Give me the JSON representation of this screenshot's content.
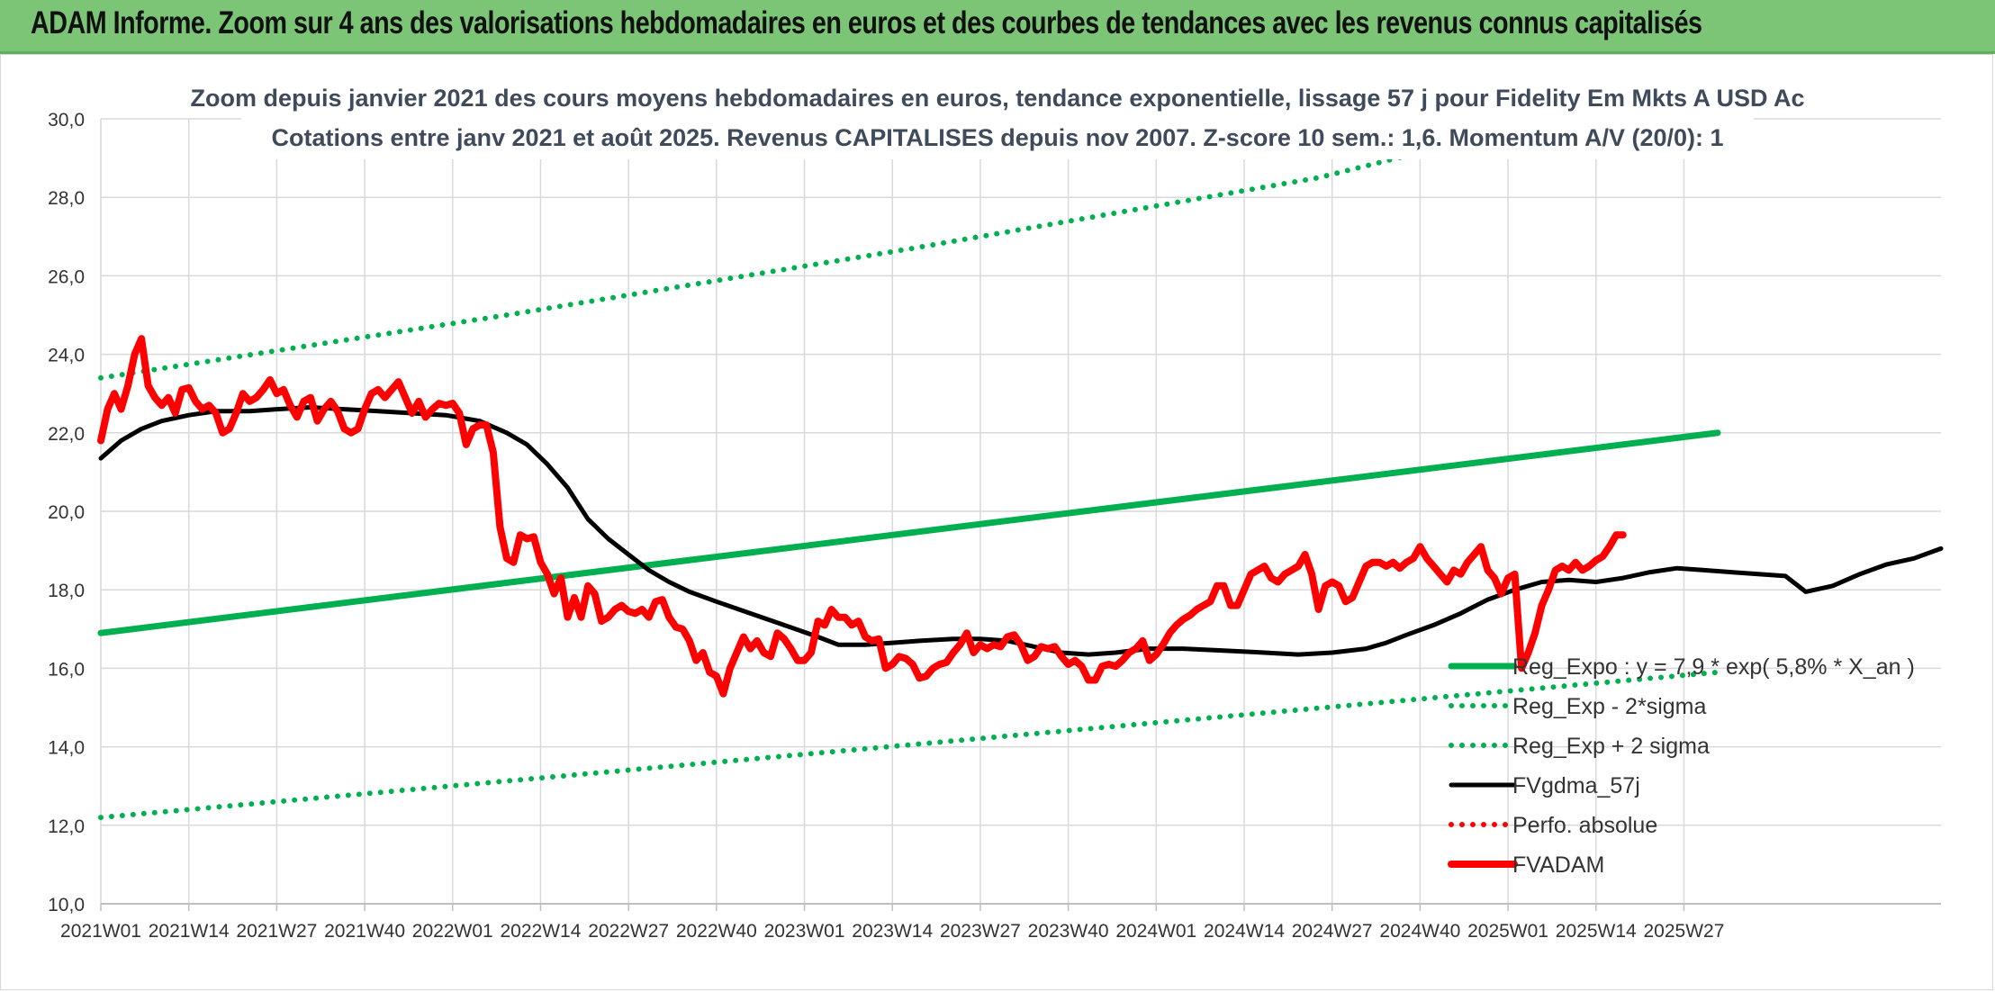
{
  "header": {
    "title": "ADAM Informe. Zoom sur 4 ans des valorisations hebdomadaires en euros et des courbes de tendances avec les revenus connus capitalisés"
  },
  "chart_data": {
    "type": "line",
    "title": "Zoom depuis janvier 2021 des cours moyens hebdomadaires en euros, tendance exponentielle, lissage 57 j pour Fidelity Em Mkts A USD Ac",
    "subtitle": "Cotations entre janv 2021 et août 2025. Revenus CAPITALISES depuis nov 2007. Z-score 10 sem.: 1,6. Momentum A/V (20/0): 1",
    "xlabel": "",
    "ylabel": "",
    "ylim": [
      10,
      30
    ],
    "y_ticks": [
      "10,0",
      "12,0",
      "14,0",
      "16,0",
      "18,0",
      "20,0",
      "22,0",
      "24,0",
      "26,0",
      "28,0",
      "30,0"
    ],
    "x_ticks": [
      "2021W01",
      "2021W14",
      "2021W27",
      "2021W40",
      "2022W01",
      "2022W14",
      "2022W27",
      "2022W40",
      "2023W01",
      "2023W14",
      "2023W27",
      "2023W40",
      "2024W01",
      "2024W14",
      "2024W27",
      "2024W40",
      "2025W01",
      "2025W14",
      "2025W27"
    ],
    "grid": true,
    "legend_position": "bottom-right",
    "series": [
      {
        "name": "Reg_Expo : y = 7,9 * exp( 5,8% * X_an )",
        "color": "#00b050",
        "style": "solid-thick",
        "points": [
          [
            0,
            16.9
          ],
          [
            239,
            22.0
          ]
        ]
      },
      {
        "name": "Reg_Exp - 2*sigma",
        "color": "#00b050",
        "style": "dotted",
        "points": [
          [
            0,
            12.2
          ],
          [
            239,
            15.9
          ]
        ]
      },
      {
        "name": "Reg_Exp + 2 sigma",
        "color": "#00b050",
        "style": "dotted",
        "points": [
          [
            0,
            23.4
          ],
          [
            60,
            25.0
          ],
          [
            120,
            26.7
          ],
          [
            180,
            28.5
          ],
          [
            215,
            30.0
          ],
          [
            239,
            30.0
          ]
        ]
      },
      {
        "name": "FVgdma_57j",
        "color": "#000000",
        "style": "solid",
        "points": [
          [
            0,
            21.35
          ],
          [
            3,
            21.8
          ],
          [
            6,
            22.1
          ],
          [
            9,
            22.3
          ],
          [
            13,
            22.45
          ],
          [
            17,
            22.55
          ],
          [
            22,
            22.55
          ],
          [
            26,
            22.6
          ],
          [
            31,
            22.65
          ],
          [
            36,
            22.6
          ],
          [
            41,
            22.55
          ],
          [
            46,
            22.5
          ],
          [
            51,
            22.45
          ],
          [
            56,
            22.3
          ],
          [
            60,
            22.0
          ],
          [
            63,
            21.7
          ],
          [
            66,
            21.2
          ],
          [
            69,
            20.6
          ],
          [
            72,
            19.8
          ],
          [
            75,
            19.3
          ],
          [
            78,
            18.9
          ],
          [
            81,
            18.5
          ],
          [
            84,
            18.2
          ],
          [
            87,
            17.95
          ],
          [
            91,
            17.7
          ],
          [
            96,
            17.4
          ],
          [
            101,
            17.1
          ],
          [
            106,
            16.8
          ],
          [
            109,
            16.6
          ],
          [
            113,
            16.6
          ],
          [
            117,
            16.65
          ],
          [
            121,
            16.7
          ],
          [
            126,
            16.75
          ],
          [
            130,
            16.75
          ],
          [
            134,
            16.7
          ],
          [
            138,
            16.55
          ],
          [
            142,
            16.4
          ],
          [
            146,
            16.35
          ],
          [
            150,
            16.4
          ],
          [
            155,
            16.5
          ],
          [
            160,
            16.5
          ],
          [
            166,
            16.45
          ],
          [
            172,
            16.4
          ],
          [
            177,
            16.35
          ],
          [
            182,
            16.4
          ],
          [
            187,
            16.5
          ],
          [
            190,
            16.65
          ],
          [
            193,
            16.85
          ],
          [
            197,
            17.1
          ],
          [
            201,
            17.4
          ],
          [
            205,
            17.75
          ],
          [
            209,
            18.0
          ],
          [
            213,
            18.2
          ],
          [
            217,
            18.25
          ],
          [
            221,
            18.2
          ],
          [
            225,
            18.3
          ],
          [
            229,
            18.45
          ],
          [
            233,
            18.55
          ],
          [
            237,
            18.5
          ],
          [
            241,
            18.45
          ],
          [
            245,
            18.4
          ],
          [
            249,
            18.35
          ],
          [
            252,
            17.95
          ],
          [
            256,
            18.1
          ],
          [
            260,
            18.4
          ],
          [
            264,
            18.65
          ],
          [
            268,
            18.8
          ],
          [
            272,
            19.05
          ]
        ]
      },
      {
        "name": "Perfo. absolue",
        "color": "#ff0000",
        "style": "dotted",
        "points": []
      },
      {
        "name": "FVADAM",
        "color": "#ff0000",
        "style": "solid-thick",
        "points": [
          [
            0,
            21.8
          ],
          [
            1,
            22.6
          ],
          [
            2,
            23.0
          ],
          [
            3,
            22.6
          ],
          [
            4,
            23.2
          ],
          [
            5,
            24.0
          ],
          [
            6,
            24.4
          ],
          [
            7,
            23.2
          ],
          [
            8,
            22.9
          ],
          [
            9,
            22.7
          ],
          [
            10,
            22.9
          ],
          [
            11,
            22.5
          ],
          [
            12,
            23.1
          ],
          [
            13,
            23.15
          ],
          [
            14,
            22.8
          ],
          [
            15,
            22.6
          ],
          [
            16,
            22.7
          ],
          [
            17,
            22.5
          ],
          [
            18,
            22.0
          ],
          [
            19,
            22.1
          ],
          [
            20,
            22.5
          ],
          [
            21,
            23.0
          ],
          [
            22,
            22.8
          ],
          [
            23,
            22.9
          ],
          [
            24,
            23.1
          ],
          [
            25,
            23.35
          ],
          [
            26,
            23.0
          ],
          [
            27,
            23.1
          ],
          [
            28,
            22.7
          ],
          [
            29,
            22.4
          ],
          [
            30,
            22.8
          ],
          [
            31,
            22.9
          ],
          [
            32,
            22.3
          ],
          [
            33,
            22.6
          ],
          [
            34,
            22.8
          ],
          [
            35,
            22.55
          ],
          [
            36,
            22.1
          ],
          [
            37,
            22.0
          ],
          [
            38,
            22.1
          ],
          [
            39,
            22.6
          ],
          [
            40,
            23.0
          ],
          [
            41,
            23.1
          ],
          [
            42,
            22.9
          ],
          [
            43,
            23.1
          ],
          [
            44,
            23.3
          ],
          [
            45,
            22.9
          ],
          [
            46,
            22.5
          ],
          [
            47,
            22.8
          ],
          [
            48,
            22.4
          ],
          [
            49,
            22.6
          ],
          [
            50,
            22.75
          ],
          [
            51,
            22.7
          ],
          [
            52,
            22.75
          ],
          [
            53,
            22.5
          ],
          [
            54,
            21.7
          ],
          [
            55,
            22.1
          ],
          [
            56,
            22.2
          ],
          [
            57,
            22.2
          ],
          [
            58,
            21.5
          ],
          [
            59,
            19.6
          ],
          [
            60,
            18.8
          ],
          [
            61,
            18.7
          ],
          [
            62,
            19.4
          ],
          [
            63,
            19.3
          ],
          [
            64,
            19.35
          ],
          [
            65,
            18.7
          ],
          [
            66,
            18.4
          ],
          [
            67,
            17.9
          ],
          [
            68,
            18.3
          ],
          [
            69,
            17.3
          ],
          [
            70,
            17.8
          ],
          [
            71,
            17.3
          ],
          [
            72,
            18.1
          ],
          [
            73,
            17.9
          ],
          [
            74,
            17.2
          ],
          [
            75,
            17.3
          ],
          [
            76,
            17.5
          ],
          [
            77,
            17.6
          ],
          [
            78,
            17.45
          ],
          [
            79,
            17.4
          ],
          [
            80,
            17.5
          ],
          [
            81,
            17.3
          ],
          [
            82,
            17.7
          ],
          [
            83,
            17.75
          ],
          [
            84,
            17.3
          ],
          [
            85,
            17.05
          ],
          [
            86,
            17.0
          ],
          [
            87,
            16.7
          ],
          [
            88,
            16.2
          ],
          [
            89,
            16.4
          ],
          [
            90,
            15.9
          ],
          [
            91,
            15.8
          ],
          [
            92,
            15.35
          ],
          [
            93,
            16.0
          ],
          [
            94,
            16.4
          ],
          [
            95,
            16.8
          ],
          [
            96,
            16.5
          ],
          [
            97,
            16.7
          ],
          [
            98,
            16.4
          ],
          [
            99,
            16.3
          ],
          [
            100,
            16.9
          ],
          [
            101,
            16.75
          ],
          [
            102,
            16.5
          ],
          [
            103,
            16.2
          ],
          [
            104,
            16.2
          ],
          [
            105,
            16.4
          ],
          [
            106,
            17.2
          ],
          [
            107,
            17.1
          ],
          [
            108,
            17.5
          ],
          [
            109,
            17.3
          ],
          [
            110,
            17.3
          ],
          [
            111,
            17.1
          ],
          [
            112,
            17.2
          ],
          [
            113,
            16.8
          ],
          [
            114,
            16.7
          ],
          [
            115,
            16.75
          ],
          [
            116,
            16.0
          ],
          [
            117,
            16.1
          ],
          [
            118,
            16.3
          ],
          [
            119,
            16.25
          ],
          [
            120,
            16.1
          ],
          [
            121,
            15.75
          ],
          [
            122,
            15.8
          ],
          [
            123,
            16.0
          ],
          [
            124,
            16.1
          ],
          [
            125,
            16.15
          ],
          [
            126,
            16.4
          ],
          [
            127,
            16.6
          ],
          [
            128,
            16.9
          ],
          [
            129,
            16.4
          ],
          [
            130,
            16.6
          ],
          [
            131,
            16.5
          ],
          [
            132,
            16.6
          ],
          [
            133,
            16.55
          ],
          [
            134,
            16.8
          ],
          [
            135,
            16.85
          ],
          [
            136,
            16.6
          ],
          [
            137,
            16.2
          ],
          [
            138,
            16.3
          ],
          [
            139,
            16.55
          ],
          [
            140,
            16.5
          ],
          [
            141,
            16.55
          ],
          [
            142,
            16.3
          ],
          [
            143,
            16.1
          ],
          [
            144,
            16.2
          ],
          [
            145,
            16.05
          ],
          [
            146,
            15.7
          ],
          [
            147,
            15.7
          ],
          [
            148,
            16.05
          ],
          [
            149,
            16.1
          ],
          [
            150,
            16.05
          ],
          [
            151,
            16.2
          ],
          [
            152,
            16.4
          ],
          [
            153,
            16.5
          ],
          [
            154,
            16.7
          ],
          [
            155,
            16.2
          ],
          [
            156,
            16.35
          ],
          [
            157,
            16.6
          ],
          [
            158,
            16.9
          ],
          [
            159,
            17.1
          ],
          [
            160,
            17.25
          ],
          [
            161,
            17.35
          ],
          [
            162,
            17.5
          ],
          [
            163,
            17.6
          ],
          [
            164,
            17.7
          ],
          [
            165,
            18.1
          ],
          [
            166,
            18.1
          ],
          [
            167,
            17.6
          ],
          [
            168,
            17.6
          ],
          [
            169,
            18.0
          ],
          [
            170,
            18.4
          ],
          [
            171,
            18.5
          ],
          [
            172,
            18.6
          ],
          [
            173,
            18.3
          ],
          [
            174,
            18.2
          ],
          [
            175,
            18.4
          ],
          [
            176,
            18.5
          ],
          [
            177,
            18.6
          ],
          [
            178,
            18.9
          ],
          [
            179,
            18.4
          ],
          [
            180,
            17.5
          ],
          [
            181,
            18.1
          ],
          [
            182,
            18.2
          ],
          [
            183,
            18.1
          ],
          [
            184,
            17.7
          ],
          [
            185,
            17.8
          ],
          [
            186,
            18.2
          ],
          [
            187,
            18.6
          ],
          [
            188,
            18.7
          ],
          [
            189,
            18.7
          ],
          [
            190,
            18.6
          ],
          [
            191,
            18.7
          ],
          [
            192,
            18.55
          ],
          [
            193,
            18.7
          ],
          [
            194,
            18.8
          ],
          [
            195,
            19.1
          ],
          [
            196,
            18.8
          ],
          [
            197,
            18.6
          ],
          [
            198,
            18.4
          ],
          [
            199,
            18.2
          ],
          [
            200,
            18.5
          ],
          [
            201,
            18.4
          ],
          [
            202,
            18.7
          ],
          [
            203,
            18.9
          ],
          [
            204,
            19.1
          ],
          [
            205,
            18.5
          ],
          [
            206,
            18.3
          ],
          [
            207,
            17.9
          ],
          [
            208,
            18.3
          ],
          [
            209,
            18.4
          ],
          [
            210,
            16.0
          ],
          [
            211,
            16.4
          ],
          [
            212,
            16.9
          ],
          [
            213,
            17.6
          ],
          [
            214,
            18.0
          ],
          [
            215,
            18.5
          ],
          [
            216,
            18.6
          ],
          [
            217,
            18.5
          ],
          [
            218,
            18.7
          ],
          [
            219,
            18.5
          ],
          [
            220,
            18.6
          ],
          [
            221,
            18.75
          ],
          [
            222,
            18.85
          ],
          [
            223,
            19.1
          ],
          [
            224,
            19.4
          ],
          [
            225,
            19.4
          ]
        ]
      }
    ]
  }
}
